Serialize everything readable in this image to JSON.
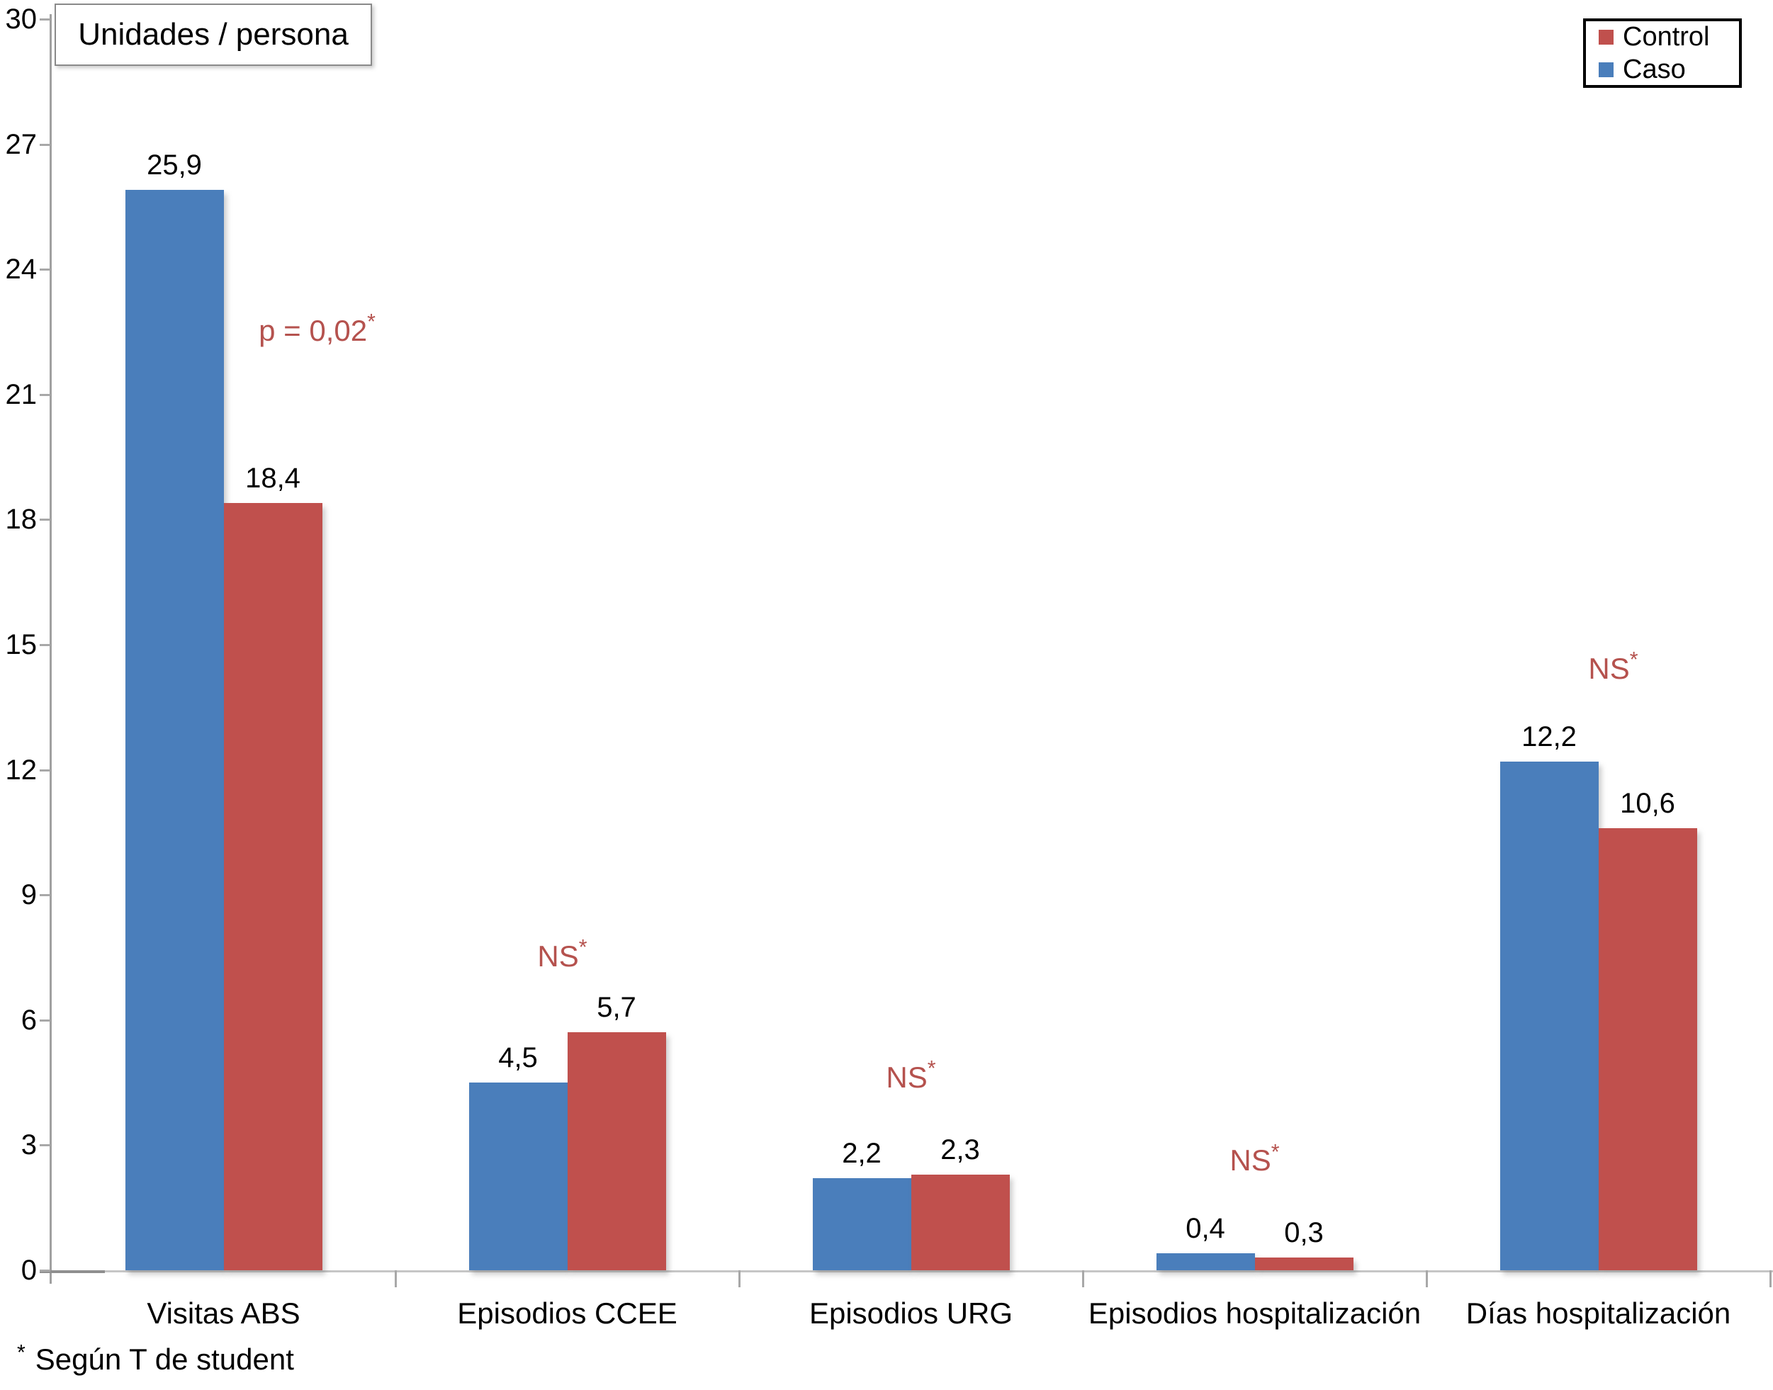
{
  "title_box": {
    "label": "Unidades / persona"
  },
  "legend": {
    "position": "top-right",
    "items": [
      {
        "label": "Control",
        "color": "#c0504d"
      },
      {
        "label": "Caso",
        "color": "#4a7ebb"
      }
    ]
  },
  "footnote": {
    "marker": "*",
    "text": "Según T de student"
  },
  "chart_data": {
    "type": "bar",
    "title": "Unidades / persona",
    "categories": [
      "Visitas ABS",
      "Episodios CCEE",
      "Episodios URG",
      "Episodios hospitalización",
      "Días hospitalización"
    ],
    "series": [
      {
        "name": "Caso",
        "color": "#4a7ebb",
        "values": [
          25.9,
          4.5,
          2.2,
          0.4,
          12.2
        ],
        "labels": [
          "25,9",
          "4,5",
          "2,2",
          "0,4",
          "12,2"
        ]
      },
      {
        "name": "Control",
        "color": "#c0504d",
        "values": [
          18.4,
          5.7,
          2.3,
          0.3,
          10.6
        ],
        "labels": [
          "18,4",
          "5,7",
          "2,3",
          "0,3",
          "10,6"
        ]
      }
    ],
    "annotations": [
      {
        "category": "Visitas ABS",
        "text": "p = 0,02",
        "marker": "*",
        "y": 22.9,
        "dx": 132
      },
      {
        "category": "Episodios CCEE",
        "text": "NS",
        "marker": "*",
        "y": 7.9,
        "dx": -7
      },
      {
        "category": "Episodios URG",
        "text": "NS",
        "marker": "*",
        "y": 5.0,
        "dx": 0
      },
      {
        "category": "Episodios hospitalización",
        "text": "NS",
        "marker": "*",
        "y": 3.0,
        "dx": 0
      },
      {
        "category": "Días hospitalización",
        "text": "NS",
        "marker": "*",
        "y": 14.8,
        "dx": 21
      }
    ],
    "annotation_color": "#b5524e",
    "ylim": [
      0,
      30
    ],
    "yticks": [
      0,
      3,
      6,
      9,
      12,
      15,
      18,
      21,
      24,
      27,
      30
    ],
    "ytick_step": 3,
    "grid": false,
    "legend_position": "top-right",
    "decimal_separator": ",",
    "xlabel": "",
    "ylabel": "Unidades / persona"
  }
}
